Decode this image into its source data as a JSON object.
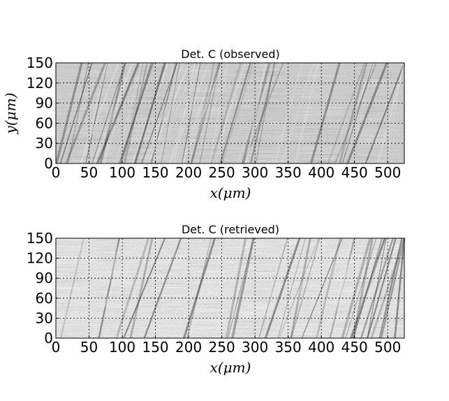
{
  "chart_data": [
    {
      "type": "heatmap",
      "title": "Det. C (observed)",
      "xlabel": "x(μm)",
      "ylabel": "y(μm)",
      "xlim": [
        0,
        525
      ],
      "ylim": [
        0,
        150
      ],
      "xticks": [
        0,
        50,
        100,
        150,
        200,
        250,
        300,
        350,
        400,
        450,
        500
      ],
      "yticks": [
        0,
        30,
        60,
        90,
        120,
        150
      ],
      "colormap": "gray",
      "grid": true
    },
    {
      "type": "heatmap",
      "title": "Det. C (retrieved)",
      "xlabel": "x(μm)",
      "ylabel": "",
      "xlim": [
        0,
        525
      ],
      "ylim": [
        0,
        150
      ],
      "xticks": [
        0,
        50,
        100,
        150,
        200,
        250,
        300,
        350,
        400,
        450,
        500
      ],
      "yticks": [
        0,
        30,
        60,
        90,
        120,
        150
      ],
      "colormap": "gray",
      "grid": true
    }
  ]
}
